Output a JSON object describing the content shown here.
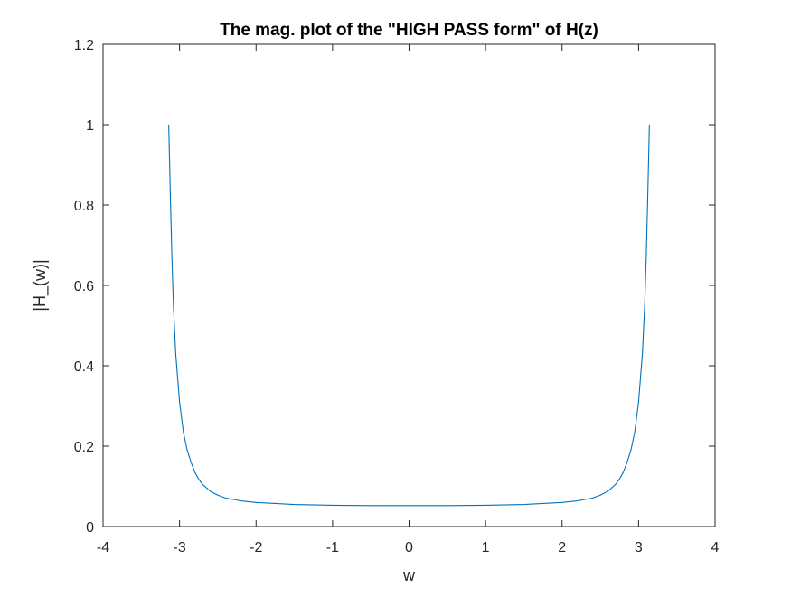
{
  "chart_data": {
    "type": "line",
    "title": "The mag. plot of the \"HIGH PASS form\" of H(z)",
    "xlabel": "w",
    "ylabel": "|H_(w)|",
    "xlim": [
      -4,
      4
    ],
    "ylim": [
      0,
      1.2
    ],
    "xticks": [
      "-4",
      "-3",
      "-2",
      "-1",
      "0",
      "1",
      "2",
      "3",
      "4"
    ],
    "yticks": [
      "0",
      "0.2",
      "0.4",
      "0.6",
      "0.8",
      "1",
      "1.2"
    ],
    "grid": false,
    "colors": {
      "line": "#0072BD",
      "axes": "#262626"
    },
    "series": [
      {
        "x": [
          -3.1416,
          -3.12,
          -3.1,
          -3.08,
          -3.05,
          -3.0,
          -2.95,
          -2.9,
          -2.85,
          -2.8,
          -2.75,
          -2.7,
          -2.6,
          -2.5,
          -2.4,
          -2.2,
          -2.0,
          -1.5,
          -1.0,
          -0.5,
          0.0,
          0.5,
          1.0,
          1.5,
          2.0,
          2.2,
          2.4,
          2.5,
          2.6,
          2.7,
          2.75,
          2.8,
          2.85,
          2.9,
          2.95,
          3.0,
          3.05,
          3.08,
          3.1,
          3.12,
          3.1416
        ],
        "y": [
          1.0,
          0.82,
          0.67,
          0.55,
          0.43,
          0.31,
          0.235,
          0.19,
          0.16,
          0.135,
          0.118,
          0.105,
          0.088,
          0.078,
          0.071,
          0.064,
          0.06,
          0.055,
          0.053,
          0.052,
          0.052,
          0.052,
          0.053,
          0.055,
          0.06,
          0.064,
          0.071,
          0.078,
          0.088,
          0.105,
          0.118,
          0.135,
          0.16,
          0.19,
          0.235,
          0.31,
          0.43,
          0.55,
          0.67,
          0.82,
          1.0
        ]
      }
    ]
  }
}
